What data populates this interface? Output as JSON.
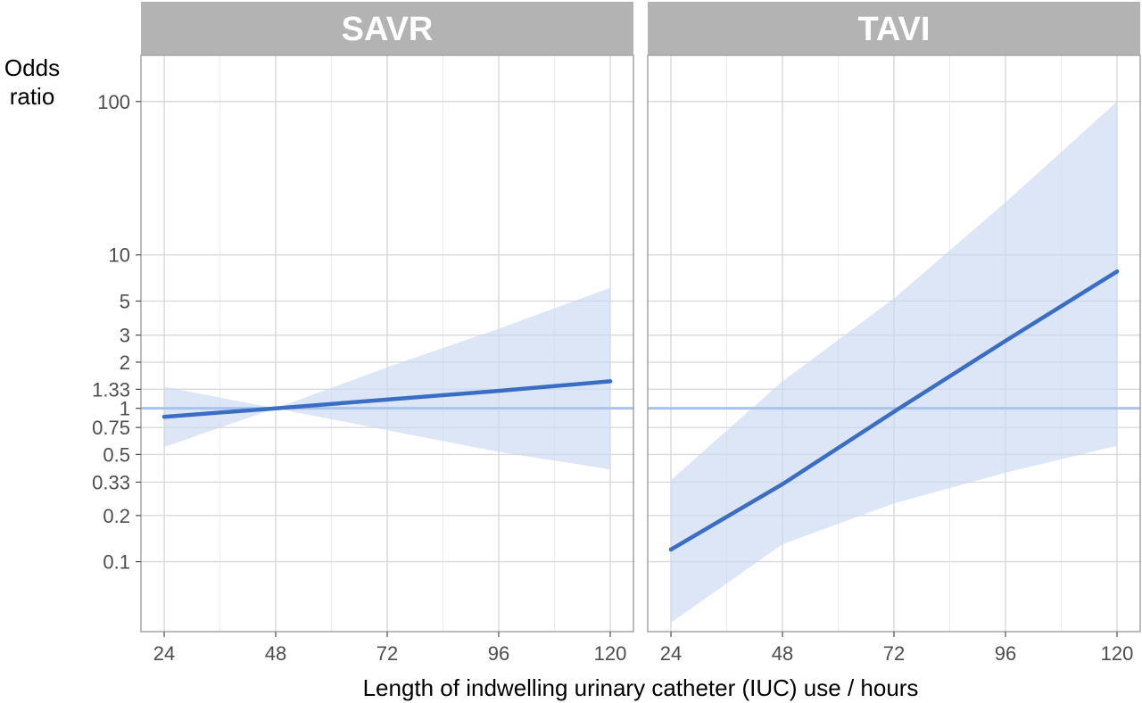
{
  "chart_data": {
    "type": "line",
    "ylabel_lines": [
      "Odds",
      "ratio"
    ],
    "xlabel": "Length of indwelling urinary catheter (IUC) use / hours",
    "y_scale": "log",
    "ylim": [
      0.035,
      200
    ],
    "xlim": [
      19,
      125
    ],
    "x_ticks": [
      24,
      48,
      72,
      96,
      120
    ],
    "x_tick_labels": [
      "24",
      "48",
      "72",
      "96",
      "120"
    ],
    "y_ticks": [
      0.1,
      0.2,
      0.33,
      0.5,
      0.75,
      1,
      1.33,
      2,
      3,
      5,
      10,
      100
    ],
    "y_tick_labels": [
      "0.1",
      "0.2",
      "0.33",
      "0.5",
      "0.75",
      "1",
      "1.33",
      "2",
      "3",
      "5",
      "10",
      "100"
    ],
    "reference_line": 1,
    "grid": true,
    "colors": {
      "line": "#3a6ec4",
      "band": "#c9d8f1",
      "reference": "#a9c3ec",
      "strip": "#b3b3b3"
    },
    "panels": [
      {
        "name": "SAVR",
        "x": [
          24,
          48,
          72,
          96,
          120
        ],
        "odds_ratio": [
          0.88,
          1.0,
          1.14,
          1.3,
          1.5
        ],
        "ci_lower": [
          0.56,
          1.0,
          0.72,
          0.52,
          0.4
        ],
        "ci_upper": [
          1.38,
          1.0,
          1.85,
          3.3,
          6.1
        ]
      },
      {
        "name": "TAVI",
        "x": [
          24,
          48,
          72,
          96,
          120
        ],
        "odds_ratio": [
          0.12,
          0.32,
          0.95,
          2.75,
          7.8
        ],
        "ci_lower": [
          0.04,
          0.13,
          0.24,
          0.38,
          0.57
        ],
        "ci_upper": [
          0.34,
          1.5,
          5.2,
          22,
          100
        ]
      }
    ]
  }
}
